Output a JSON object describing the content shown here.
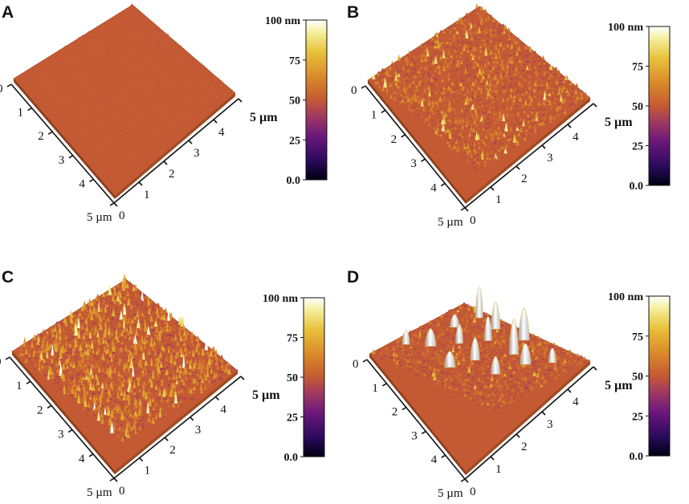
{
  "colorbar": {
    "labels": [
      "100 nm",
      "75",
      "50",
      "25",
      "0.0"
    ],
    "stops": [
      "#000010",
      "#2a0a5c",
      "#6a177a",
      "#a03a62",
      "#c45a34",
      "#d9882a",
      "#e8c23a",
      "#f4ee9a",
      "#ffffff"
    ]
  },
  "panels": [
    {
      "letter": "A",
      "roughness": "smooth",
      "axis_left_ticks": [
        "0",
        "1",
        "2",
        "3",
        "4",
        "5 µm"
      ],
      "axis_right_ticks": [
        "0",
        "1",
        "2",
        "3",
        "4",
        "5 µm"
      ]
    },
    {
      "letter": "B",
      "roughness": "medium",
      "axis_left_ticks": [
        "0",
        "1",
        "2",
        "3",
        "4",
        "5 µm"
      ],
      "axis_right_ticks": [
        "0",
        "1",
        "2",
        "3",
        "4",
        "5 µm"
      ]
    },
    {
      "letter": "C",
      "roughness": "rough",
      "axis_left_ticks": [
        "0",
        "1",
        "2",
        "3",
        "4",
        "5 µm"
      ],
      "axis_right_ticks": [
        "0",
        "1",
        "2",
        "3",
        "4",
        "5 µm"
      ]
    },
    {
      "letter": "D",
      "roughness": "spiky",
      "axis_left_ticks": [
        "0",
        "1",
        "2",
        "3",
        "4",
        "5 µm"
      ],
      "axis_right_ticks": [
        "0",
        "1",
        "2",
        "3",
        "4",
        "5 µm"
      ]
    }
  ]
}
